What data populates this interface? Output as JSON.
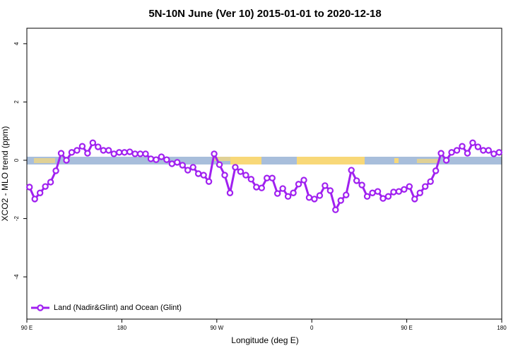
{
  "chart_data": {
    "type": "line",
    "title": "5N-10N June (Ver 10)   2015-01-01 to 2020-12-18",
    "x_label": "Longitude (deg E)",
    "y_label": "XCO2 - MLO trend (ppm)",
    "x": [
      92.5,
      97.5,
      102.5,
      107.5,
      112.5,
      117.5,
      122.5,
      127.5,
      132.5,
      137.5,
      142.5,
      147.5,
      152.5,
      157.5,
      162.5,
      167.5,
      172.5,
      177.5,
      182.5,
      187.5,
      192.5,
      197.5,
      202.5,
      207.5,
      212.5,
      217.5,
      222.5,
      227.5,
      232.5,
      237.5,
      242.5,
      247.5,
      252.5,
      257.5,
      262.5,
      267.5,
      272.5,
      277.5,
      282.5,
      287.5,
      292.5,
      297.5,
      302.5,
      307.5,
      312.5,
      317.5,
      322.5,
      327.5,
      332.5,
      337.5,
      342.5,
      347.5,
      352.5,
      357.5,
      362.5,
      367.5,
      372.5,
      377.5,
      382.5,
      387.5,
      392.5,
      397.5,
      402.5,
      407.5,
      412.5,
      417.5,
      422.5,
      427.5,
      432.5,
      437.5,
      442.5,
      447.5,
      452.5,
      457.5,
      462.5,
      467.5,
      472.5,
      477.5,
      482.5,
      487.5,
      492.5,
      497.5,
      502.5,
      507.5,
      512.5,
      517.5,
      522.5,
      527.5,
      532.5,
      537.5
    ],
    "series": [
      {
        "name": "Land (Nadir&Glint) and Ocean (Glint)",
        "color": "#a020f0",
        "values": [
          -0.92,
          -1.33,
          -1.12,
          -0.9,
          -0.75,
          -0.36,
          0.24,
          0,
          0.27,
          0.34,
          0.48,
          0.24,
          0.6,
          0.46,
          0.34,
          0.34,
          0.22,
          0.27,
          0.27,
          0.29,
          0.22,
          0.22,
          0.22,
          0.05,
          0.02,
          0.12,
          0.02,
          -0.12,
          -0.07,
          -0.17,
          -0.34,
          -0.24,
          -0.46,
          -0.51,
          -0.73,
          0.22,
          -0.15,
          -0.51,
          -1.12,
          -0.24,
          -0.39,
          -0.51,
          -0.65,
          -0.92,
          -0.95,
          -0.61,
          -0.61,
          -1.14,
          -0.97,
          -1.24,
          -1.12,
          -0.82,
          -0.68,
          -1.28,
          -1.33,
          -1.21,
          -0.87,
          -1.04,
          -1.7,
          -1.38,
          -1.19,
          -0.34,
          -0.7,
          -0.85,
          -1.24,
          -1.12,
          -1.07,
          -1.31,
          -1.24,
          -1.09,
          -1.07,
          -1.0,
          -0.9,
          -1.33,
          -1.12,
          -0.9,
          -0.73,
          -0.36,
          0.24,
          0,
          0.27,
          0.34,
          0.48,
          0.24,
          0.6,
          0.46,
          0.34,
          0.34,
          0.22,
          0.27
        ]
      }
    ],
    "xlim": [
      90,
      540
    ],
    "xticks": [
      {
        "value": 90,
        "label": "90 E"
      },
      180,
      {
        "value": 270,
        "label": "90 W"
      },
      {
        "value": 360,
        "label": "0"
      },
      {
        "value": 450,
        "label": "90 E"
      },
      {
        "value": 540,
        "label": "180"
      }
    ],
    "ylim": [
      -5.45,
      4.53
    ],
    "yticks": [
      -4,
      -2,
      0,
      2,
      4
    ],
    "legend": "bottom-left"
  }
}
